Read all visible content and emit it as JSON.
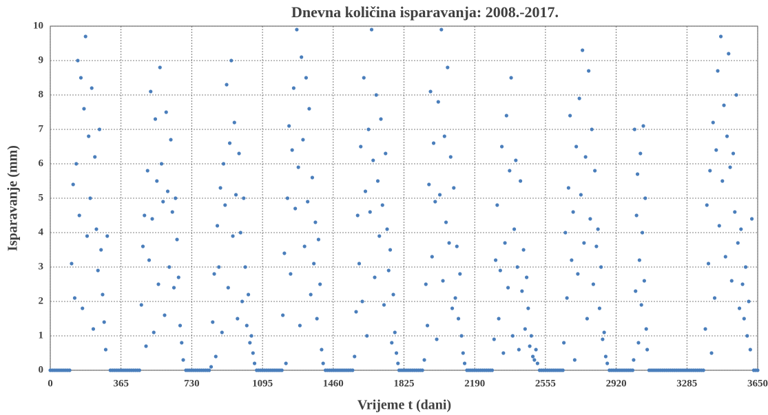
{
  "chart_data": {
    "type": "scatter",
    "title": "Dnevna količina isparavanja: 2008.-2017.",
    "x_label": "Vrijeme t (dani)",
    "y_label": "Isparavanje (mm)",
    "color": "#4a7ebb",
    "grid": true,
    "xlim": [
      0,
      3650
    ],
    "ylim": [
      0,
      10
    ],
    "xticks": [
      0,
      365,
      730,
      1095,
      1460,
      1825,
      2190,
      2555,
      2920,
      3285,
      3650
    ],
    "yticks": [
      0,
      1,
      2,
      3,
      4,
      5,
      6,
      7,
      8,
      9,
      10
    ],
    "x": [
      0,
      10,
      20,
      30,
      40,
      50,
      60,
      70,
      80,
      90,
      100,
      110,
      118,
      126,
      134,
      142,
      150,
      158,
      166,
      174,
      182,
      190,
      198,
      206,
      214,
      222,
      230,
      238,
      246,
      254,
      262,
      270,
      278,
      286,
      294,
      310,
      320,
      330,
      340,
      350,
      360,
      370,
      380,
      390,
      400,
      410,
      420,
      430,
      440,
      450,
      460,
      470,
      478,
      486,
      494,
      502,
      510,
      518,
      526,
      534,
      542,
      550,
      558,
      566,
      574,
      582,
      590,
      598,
      606,
      614,
      622,
      630,
      638,
      646,
      654,
      662,
      670,
      678,
      686,
      700,
      710,
      720,
      730,
      740,
      750,
      760,
      770,
      780,
      790,
      800,
      810,
      820,
      830,
      838,
      846,
      854,
      862,
      870,
      878,
      886,
      894,
      902,
      910,
      918,
      926,
      934,
      942,
      950,
      958,
      966,
      974,
      982,
      990,
      998,
      1006,
      1014,
      1022,
      1030,
      1038,
      1046,
      1054,
      1065,
      1075,
      1085,
      1095,
      1105,
      1115,
      1125,
      1135,
      1145,
      1155,
      1165,
      1175,
      1185,
      1195,
      1200,
      1208,
      1216,
      1224,
      1232,
      1240,
      1248,
      1256,
      1264,
      1272,
      1280,
      1288,
      1296,
      1304,
      1312,
      1320,
      1328,
      1336,
      1344,
      1352,
      1360,
      1368,
      1376,
      1384,
      1392,
      1400,
      1408,
      1420,
      1430,
      1440,
      1450,
      1460,
      1470,
      1480,
      1490,
      1500,
      1510,
      1520,
      1530,
      1540,
      1550,
      1560,
      1570,
      1578,
      1586,
      1594,
      1602,
      1610,
      1618,
      1626,
      1634,
      1642,
      1650,
      1658,
      1666,
      1674,
      1682,
      1690,
      1698,
      1706,
      1714,
      1722,
      1730,
      1738,
      1746,
      1754,
      1762,
      1770,
      1778,
      1786,
      1794,
      1800,
      1810,
      1820,
      1830,
      1840,
      1850,
      1860,
      1870,
      1880,
      1890,
      1900,
      1910,
      1920,
      1930,
      1938,
      1946,
      1954,
      1962,
      1970,
      1978,
      1986,
      1994,
      2002,
      2010,
      2018,
      2026,
      2034,
      2042,
      2050,
      2058,
      2066,
      2074,
      2082,
      2090,
      2098,
      2106,
      2114,
      2122,
      2130,
      2138,
      2150,
      2160,
      2170,
      2180,
      2190,
      2200,
      2210,
      2220,
      2230,
      2240,
      2250,
      2260,
      2270,
      2280,
      2290,
      2298,
      2306,
      2314,
      2322,
      2330,
      2338,
      2346,
      2354,
      2362,
      2370,
      2378,
      2386,
      2394,
      2402,
      2410,
      2418,
      2426,
      2434,
      2442,
      2450,
      2458,
      2466,
      2474,
      2482,
      2490,
      2498,
      2506,
      2514,
      2525,
      2535,
      2545,
      2555,
      2565,
      2575,
      2585,
      2595,
      2605,
      2615,
      2625,
      2635,
      2645,
      2650,
      2658,
      2666,
      2674,
      2682,
      2690,
      2698,
      2706,
      2714,
      2722,
      2730,
      2738,
      2746,
      2754,
      2762,
      2770,
      2778,
      2786,
      2794,
      2802,
      2810,
      2818,
      2826,
      2834,
      2842,
      2850,
      2858,
      2866,
      2874,
      2885,
      2895,
      2905,
      2915,
      2925,
      2935,
      2945,
      2955,
      2965,
      2975,
      2985,
      2995,
      3005,
      3010,
      3015,
      3020,
      3025,
      3030,
      3035,
      3040,
      3045,
      3050,
      3055,
      3060,
      3065,
      3070,
      3075,
      3080,
      3090,
      3100,
      3110,
      3120,
      3130,
      3140,
      3150,
      3160,
      3170,
      3180,
      3190,
      3200,
      3210,
      3220,
      3230,
      3240,
      3250,
      3260,
      3270,
      3280,
      3290,
      3300,
      3310,
      3320,
      3330,
      3340,
      3350,
      3360,
      3370,
      3380,
      3388,
      3396,
      3404,
      3412,
      3420,
      3428,
      3436,
      3444,
      3452,
      3460,
      3468,
      3476,
      3484,
      3492,
      3500,
      3508,
      3516,
      3524,
      3532,
      3540,
      3548,
      3556,
      3564,
      3572,
      3580,
      3588,
      3596,
      3604,
      3612,
      3620,
      3630,
      3640,
      3650
    ],
    "values": [
      0,
      0,
      0,
      0,
      0,
      0,
      0,
      0,
      0,
      0,
      0,
      3.1,
      5.4,
      2.1,
      6.0,
      9.0,
      4.5,
      8.5,
      1.8,
      7.6,
      9.7,
      3.9,
      6.8,
      5.0,
      8.2,
      1.2,
      6.2,
      4.1,
      2.9,
      7.0,
      3.5,
      2.2,
      1.4,
      0.6,
      3.9,
      0,
      0,
      0,
      0,
      0,
      0,
      0,
      0,
      0,
      0,
      0,
      0,
      0,
      0,
      0,
      0,
      1.9,
      3.6,
      4.5,
      0.7,
      5.8,
      3.2,
      8.1,
      4.4,
      1.1,
      7.3,
      5.5,
      2.5,
      8.8,
      6.0,
      4.9,
      1.6,
      7.5,
      5.2,
      3.0,
      6.7,
      4.6,
      2.4,
      5.0,
      3.8,
      2.7,
      1.3,
      0.8,
      0.3,
      0,
      0,
      0,
      0,
      0,
      0,
      0,
      0,
      0,
      0,
      0,
      0,
      0,
      0.1,
      1.4,
      2.8,
      0.4,
      4.2,
      3.0,
      5.3,
      1.1,
      6.0,
      4.8,
      8.3,
      2.4,
      6.6,
      9.0,
      3.9,
      7.2,
      5.1,
      1.5,
      6.3,
      4.0,
      2.0,
      5.0,
      3.0,
      1.3,
      2.2,
      0.8,
      1.0,
      0.5,
      0.2,
      0,
      0,
      0,
      0,
      0,
      0,
      0,
      0,
      0,
      0,
      0,
      0,
      0,
      0,
      1.6,
      3.4,
      0.2,
      5.0,
      7.1,
      2.8,
      6.4,
      8.2,
      4.7,
      9.9,
      5.9,
      1.3,
      9.1,
      6.7,
      3.6,
      8.5,
      4.9,
      7.6,
      2.2,
      5.6,
      3.1,
      4.3,
      1.5,
      3.8,
      2.5,
      0.6,
      0.2,
      0,
      0,
      0,
      0,
      0,
      0,
      0,
      0,
      0,
      0,
      0,
      0,
      0,
      0,
      0,
      0.4,
      1.7,
      4.5,
      3.1,
      6.5,
      2.0,
      8.5,
      5.2,
      1.0,
      7.0,
      4.6,
      9.9,
      6.1,
      2.7,
      8.0,
      5.5,
      3.9,
      7.3,
      4.8,
      1.9,
      6.3,
      4.1,
      2.9,
      3.5,
      0.8,
      2.2,
      1.1,
      0.5,
      0.2,
      0,
      0,
      0,
      0,
      0,
      0,
      0,
      0,
      0,
      0,
      0,
      0,
      0,
      0.3,
      2.5,
      1.3,
      5.4,
      8.1,
      3.3,
      6.6,
      4.9,
      0.9,
      7.8,
      5.1,
      9.9,
      2.6,
      6.8,
      4.3,
      8.8,
      3.7,
      6.2,
      1.8,
      5.3,
      2.1,
      3.6,
      1.5,
      2.8,
      1.0,
      0.5,
      0.2,
      0,
      0,
      0,
      0,
      0,
      0,
      0,
      0,
      0,
      0,
      0,
      0,
      0,
      0,
      0.9,
      3.2,
      4.8,
      1.5,
      2.9,
      6.5,
      0.5,
      3.7,
      7.4,
      2.4,
      5.8,
      8.5,
      1.0,
      4.1,
      6.1,
      3.0,
      0.6,
      5.5,
      2.3,
      3.5,
      1.2,
      2.7,
      1.8,
      0.7,
      1.0,
      0.4,
      0.3,
      0.6,
      0.2,
      0,
      0,
      0,
      0,
      0,
      0,
      0,
      0,
      0,
      0,
      0,
      0,
      0,
      0.8,
      4.0,
      2.1,
      5.3,
      7.4,
      3.2,
      4.6,
      0.3,
      6.5,
      2.8,
      7.9,
      5.1,
      9.3,
      3.7,
      6.2,
      1.5,
      8.7,
      4.4,
      7.0,
      2.5,
      5.8,
      3.6,
      4.1,
      1.8,
      3.0,
      0.9,
      1.1,
      0.4,
      0.2,
      0,
      0,
      0,
      0,
      0,
      0,
      0,
      0,
      0,
      0,
      0,
      0,
      0,
      0.3,
      7.0,
      2.3,
      4.5,
      5.7,
      0.8,
      3.2,
      6.3,
      1.9,
      4.0,
      7.1,
      2.6,
      5.0,
      1.2,
      0.6,
      0,
      0,
      0,
      0,
      0,
      0,
      0,
      0,
      0,
      0,
      0,
      0,
      0,
      0,
      0,
      0,
      0,
      0,
      0,
      0,
      0,
      0,
      0,
      0,
      0,
      0,
      0,
      0,
      0,
      1.2,
      4.8,
      3.1,
      5.8,
      0.5,
      7.2,
      2.1,
      6.4,
      8.7,
      4.2,
      9.7,
      5.5,
      7.7,
      3.3,
      6.8,
      9.2,
      5.9,
      2.6,
      6.3,
      4.6,
      8.0,
      3.7,
      1.8,
      4.1,
      2.5,
      1.5,
      3.0,
      1.0,
      2.0,
      0.6,
      4.4,
      0,
      0,
      0
    ]
  }
}
